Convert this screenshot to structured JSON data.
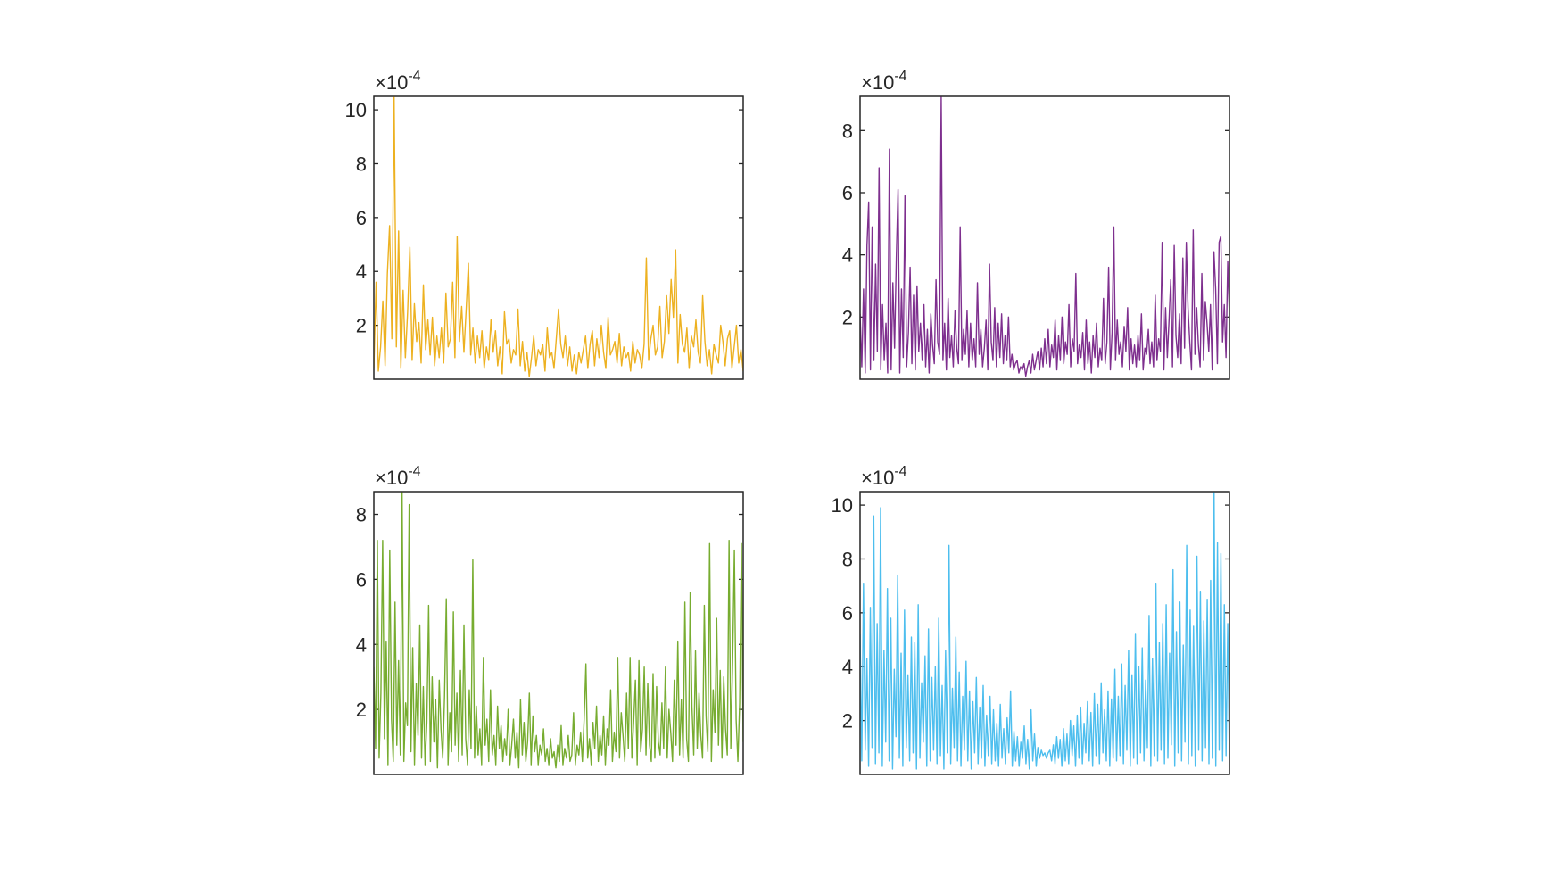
{
  "chart_data": [
    {
      "type": "line",
      "position": "top-left",
      "title": "",
      "xlabel": "",
      "ylabel": "",
      "exponent_label": "×10^{-4}",
      "exponent_multiplier": "×10",
      "exponent_power": "-4",
      "ylim": [
        0,
        10.5
      ],
      "yticks": [
        2,
        4,
        6,
        8,
        10
      ],
      "ytick_labels": [
        "2",
        "4",
        "6",
        "8",
        "10"
      ],
      "xticks_visible": false,
      "grid": false,
      "color": "#EDB120",
      "series": [
        {
          "name": "",
          "color": "#EDB120",
          "values": [
            0.4,
            3.6,
            0.3,
            1.2,
            2.9,
            0.5,
            3.9,
            5.7,
            1.5,
            10.5,
            1.2,
            5.5,
            0.4,
            3.3,
            0.8,
            2.5,
            4.9,
            0.7,
            2.8,
            1.4,
            2.1,
            0.6,
            3.5,
            1.1,
            2.2,
            0.9,
            2.3,
            0.5,
            1.6,
            0.8,
            1.9,
            0.6,
            3.2,
            1.2,
            1.5,
            3.6,
            0.8,
            5.3,
            1.4,
            2.7,
            1.0,
            2.6,
            4.3,
            0.9,
            1.9,
            0.6,
            1.6,
            0.8,
            1.8,
            0.4,
            1.2,
            0.7,
            2.2,
            1.0,
            1.8,
            0.5,
            1.2,
            0.2,
            2.5,
            1.3,
            1.5,
            0.6,
            1.1,
            0.9,
            2.6,
            0.5,
            1.4,
            0.3,
            1.0,
            0.1,
            0.8,
            1.6,
            0.5,
            1.1,
            0.9,
            1.3,
            0.3,
            1.9,
            0.8,
            1.0,
            0.4,
            1.5,
            2.6,
            1.3,
            0.8,
            1.6,
            0.5,
            1.2,
            0.3,
            0.9,
            0.2,
            1.0,
            0.6,
            1.1,
            1.6,
            0.4,
            1.3,
            1.8,
            0.5,
            1.5,
            0.8,
            2.0,
            1.0,
            0.4,
            2.3,
            0.9,
            1.1,
            1.4,
            0.6,
            1.7,
            0.5,
            1.2,
            0.8,
            1.0,
            0.3,
            1.4,
            0.6,
            1.1,
            0.9,
            0.4,
            1.3,
            4.5,
            0.7,
            1.5,
            2.0,
            0.9,
            1.2,
            2.7,
            0.8,
            1.4,
            3.1,
            1.7,
            3.7,
            2.3,
            4.8,
            0.6,
            2.4,
            1.3,
            1.0,
            1.9,
            0.4,
            1.6,
            1.2,
            2.2,
            1.0,
            0.6,
            3.1,
            1.4,
            0.5,
            1.1,
            0.2,
            1.3,
            0.9,
            0.6,
            2.0,
            1.4,
            0.5,
            1.5,
            1.8,
            0.4,
            1.2,
            2.0,
            0.6,
            1.1,
            0.3
          ]
        }
      ]
    },
    {
      "type": "line",
      "position": "top-right",
      "title": "",
      "xlabel": "",
      "ylabel": "",
      "exponent_label": "×10^{-4}",
      "exponent_multiplier": "×10",
      "exponent_power": "-4",
      "ylim": [
        0,
        9.1
      ],
      "yticks": [
        2,
        4,
        6,
        8
      ],
      "ytick_labels": [
        "2",
        "4",
        "6",
        "8"
      ],
      "xticks_visible": false,
      "grid": false,
      "color": "#7E2F8E",
      "series": [
        {
          "name": "",
          "color": "#7E2F8E",
          "values": [
            2.1,
            0.4,
            2.9,
            0.2,
            4.3,
            5.7,
            0.3,
            4.9,
            0.6,
            3.7,
            0.9,
            6.8,
            0.3,
            2.4,
            0.6,
            1.8,
            0.2,
            7.4,
            0.3,
            3.1,
            1.0,
            3.9,
            6.1,
            0.2,
            2.9,
            0.7,
            5.9,
            0.4,
            1.5,
            3.6,
            0.5,
            2.7,
            0.3,
            3.0,
            0.9,
            1.8,
            0.6,
            2.4,
            0.4,
            1.6,
            0.2,
            2.1,
            1.1,
            0.5,
            3.2,
            1.2,
            0.8,
            9.1,
            0.6,
            1.8,
            0.3,
            2.6,
            0.7,
            1.4,
            0.4,
            2.2,
            1.0,
            0.5,
            4.9,
            0.6,
            1.6,
            0.8,
            2.2,
            0.4,
            1.8,
            0.6,
            1.3,
            0.4,
            3.1,
            0.8,
            1.6,
            0.4,
            1.0,
            1.9,
            0.3,
            3.7,
            1.2,
            0.6,
            2.3,
            0.4,
            1.8,
            0.7,
            2.1,
            0.5,
            1.4,
            0.6,
            2.0,
            0.4,
            0.8,
            0.3,
            0.5,
            0.6,
            0.2,
            0.4,
            0.3,
            0.5,
            0.1,
            0.4,
            0.6,
            0.2,
            0.8,
            0.3,
            0.6,
            0.9,
            0.3,
            1.0,
            0.4,
            1.3,
            0.5,
            1.6,
            0.4,
            1.1,
            0.7,
            1.9,
            0.3,
            1.4,
            0.6,
            2.0,
            0.5,
            1.2,
            0.8,
            2.4,
            0.4,
            1.3,
            0.9,
            3.4,
            0.5,
            1.1,
            0.7,
            1.5,
            0.3,
            1.9,
            0.5,
            1.2,
            0.2,
            1.4,
            0.7,
            1.8,
            0.4,
            1.0,
            0.6,
            2.6,
            0.5,
            1.2,
            3.6,
            0.3,
            1.5,
            4.9,
            0.6,
            1.9,
            0.8,
            1.2,
            0.4,
            1.7,
            0.9,
            2.3,
            0.3,
            1.3,
            0.5,
            1.1,
            0.4,
            1.4,
            0.6,
            2.1,
            0.3,
            1.0,
            0.8,
            1.6,
            0.5,
            1.2,
            0.4,
            2.7,
            0.6,
            1.3,
            0.9,
            4.4,
            0.3,
            2.3,
            0.7,
            1.9,
            3.2,
            0.4,
            4.3,
            1.4,
            0.7,
            2.1,
            0.5,
            3.9,
            1.0,
            4.4,
            2.3,
            1.2,
            0.3,
            4.8,
            0.8,
            2.3,
            1.1,
            0.4,
            3.4,
            0.6,
            2.5,
            1.8,
            0.9,
            2.4,
            0.3,
            4.1,
            2.9,
            0.5,
            4.4,
            4.6,
            1.2,
            2.4,
            0.7,
            3.8,
            2.0
          ]
        }
      ]
    },
    {
      "type": "line",
      "position": "bottom-left",
      "title": "",
      "xlabel": "",
      "ylabel": "",
      "exponent_label": "×10^{-4}",
      "exponent_multiplier": "×10",
      "exponent_power": "-4",
      "ylim": [
        0,
        8.7
      ],
      "yticks": [
        2,
        4,
        6,
        8
      ],
      "ytick_labels": [
        "2",
        "4",
        "6",
        "8"
      ],
      "xticks_visible": false,
      "grid": false,
      "color": "#77AC30",
      "series": [
        {
          "name": "",
          "color": "#77AC30",
          "values": [
            3.3,
            0.8,
            7.2,
            0.5,
            2.5,
            7.2,
            1.1,
            4.1,
            0.3,
            6.9,
            1.7,
            0.4,
            5.3,
            0.9,
            3.5,
            0.6,
            8.7,
            0.4,
            2.2,
            1.5,
            8.3,
            0.7,
            3.9,
            0.3,
            2.8,
            1.2,
            4.6,
            0.5,
            2.7,
            0.3,
            1.6,
            5.2,
            0.4,
            3.0,
            1.0,
            2.3,
            0.2,
            2.9,
            1.4,
            0.5,
            2.4,
            5.4,
            0.3,
            1.9,
            0.7,
            5.0,
            0.9,
            2.5,
            0.4,
            3.2,
            0.6,
            4.6,
            1.1,
            0.3,
            2.6,
            0.8,
            6.6,
            0.5,
            2.1,
            0.6,
            1.4,
            0.3,
            3.6,
            0.9,
            1.7,
            0.4,
            2.6,
            0.6,
            1.2,
            0.3,
            2.1,
            0.8,
            1.5,
            0.4,
            1.1,
            0.6,
            2.0,
            0.3,
            0.9,
            1.7,
            0.5,
            1.3,
            0.2,
            2.3,
            0.6,
            1.6,
            0.4,
            1.0,
            2.5,
            0.3,
            1.8,
            0.7,
            1.2,
            0.3,
            0.9,
            0.6,
            1.4,
            0.4,
            0.8,
            0.3,
            1.1,
            0.5,
            0.7,
            0.2,
            0.9,
            0.4,
            1.5,
            0.3,
            0.8,
            0.5,
            1.2,
            0.4,
            0.6,
            1.9,
            0.3,
            0.9,
            0.6,
            1.3,
            0.4,
            1.7,
            3.4,
            0.5,
            1.1,
            0.3,
            1.6,
            0.8,
            2.1,
            0.4,
            1.2,
            0.6,
            1.8,
            0.3,
            1.4,
            0.9,
            2.6,
            0.4,
            1.3,
            0.7,
            3.6,
            0.5,
            1.9,
            1.2,
            0.4,
            2.5,
            0.8,
            3.6,
            0.5,
            1.6,
            2.9,
            0.3,
            3.5,
            0.7,
            1.4,
            3.3,
            0.6,
            2.8,
            0.9,
            0.4,
            3.1,
            0.5,
            2.7,
            1.0,
            0.6,
            2.2,
            0.8,
            3.3,
            0.5,
            2.0,
            1.3,
            0.4,
            2.9,
            0.9,
            4.1,
            0.6,
            2.3,
            0.5,
            5.3,
            1.1,
            0.4,
            5.6,
            2.1,
            0.6,
            3.8,
            0.8,
            2.5,
            1.2,
            0.5,
            5.2,
            1.8,
            0.7,
            7.1,
            0.4,
            2.6,
            1.3,
            4.8,
            0.9,
            3.2,
            0.5,
            3.0,
            1.4,
            0.6,
            7.2,
            0.8,
            3.4,
            6.9,
            1.7,
            0.4,
            2.2,
            7.1,
            1.0
          ]
        }
      ]
    },
    {
      "type": "line",
      "position": "bottom-right",
      "title": "",
      "xlabel": "",
      "ylabel": "",
      "exponent_label": "×10^{-4}",
      "exponent_multiplier": "×10",
      "exponent_power": "-4",
      "ylim": [
        0,
        10.5
      ],
      "yticks": [
        2,
        4,
        6,
        8,
        10
      ],
      "ytick_labels": [
        "2",
        "4",
        "6",
        "8",
        "10"
      ],
      "xticks_visible": false,
      "grid": false,
      "color": "#4DBEEE",
      "series": [
        {
          "name": "",
          "color": "#4DBEEE",
          "values": [
            5.2,
            0.5,
            7.1,
            0.9,
            4.3,
            0.3,
            6.2,
            1.0,
            9.6,
            0.4,
            5.6,
            0.8,
            9.9,
            0.3,
            4.6,
            1.2,
            6.9,
            0.5,
            5.8,
            0.2,
            3.9,
            1.4,
            7.4,
            0.6,
            4.5,
            0.3,
            6.1,
            1.0,
            3.7,
            0.5,
            5.1,
            0.8,
            4.9,
            0.2,
            6.3,
            0.6,
            3.4,
            1.2,
            4.4,
            0.3,
            5.4,
            0.5,
            3.6,
            0.9,
            4.0,
            0.4,
            5.8,
            0.7,
            3.3,
            0.2,
            4.6,
            0.8,
            8.5,
            0.4,
            3.2,
            1.0,
            5.1,
            0.5,
            3.8,
            0.3,
            2.9,
            0.9,
            4.2,
            0.5,
            3.1,
            0.2,
            2.7,
            0.8,
            3.6,
            0.4,
            2.5,
            0.6,
            3.3,
            0.3,
            2.2,
            0.7,
            2.9,
            0.4,
            2.4,
            0.5,
            1.9,
            0.3,
            2.6,
            0.6,
            1.7,
            0.4,
            2.1,
            0.8,
            3.1,
            0.3,
            1.6,
            0.5,
            1.4,
            0.3,
            1.2,
            0.6,
            1.8,
            0.4,
            1.3,
            0.2,
            2.4,
            0.5,
            1.5,
            0.3,
            1.0,
            0.6,
            0.9,
            0.7,
            0.8,
            0.6,
            0.8,
            0.9,
            0.5,
            1.1,
            0.4,
            1.4,
            0.6,
            1.3,
            0.3,
            1.7,
            0.5,
            1.5,
            0.4,
            2.0,
            0.7,
            1.8,
            0.3,
            2.2,
            0.6,
            2.5,
            0.4,
            1.9,
            0.8,
            2.7,
            0.5,
            2.3,
            0.3,
            3.0,
            0.7,
            2.6,
            0.4,
            3.4,
            0.8,
            2.4,
            0.5,
            3.1,
            0.3,
            2.8,
            0.6,
            3.9,
            0.5,
            2.9,
            0.7,
            4.1,
            0.4,
            3.3,
            0.9,
            4.6,
            0.3,
            3.7,
            0.6,
            5.2,
            0.4,
            4.0,
            0.8,
            4.7,
            0.5,
            3.5,
            1.0,
            5.9,
            0.3,
            4.3,
            0.7,
            7.1,
            0.5,
            4.9,
            0.9,
            5.6,
            0.4,
            6.3,
            0.6,
            4.5,
            1.1,
            7.6,
            0.3,
            5.3,
            0.8,
            6.4,
            0.5,
            4.8,
            1.2,
            8.5,
            0.4,
            6.1,
            0.7,
            5.5,
            0.3,
            8.1,
            0.9,
            6.8,
            0.5,
            5.7,
            1.0,
            6.5,
            0.4,
            7.2,
            0.6,
            10.5,
            0.3,
            8.6,
            0.9,
            8.2,
            0.5,
            6.3,
            0.7,
            5.6,
            0.4
          ]
        }
      ]
    }
  ]
}
